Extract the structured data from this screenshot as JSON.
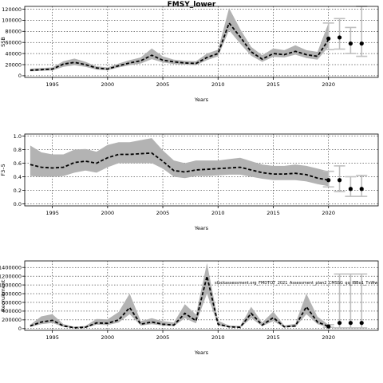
{
  "chart_data": [
    {
      "type": "line",
      "title": "FMSY_lower",
      "xlabel": "Years",
      "ylabel": "SSB",
      "xlim": [
        1992.5,
        2024.5
      ],
      "ylim": [
        -3000,
        125000
      ],
      "xticks": [
        1995,
        2000,
        2005,
        2010,
        2015,
        2020
      ],
      "yticks": [
        0,
        20000,
        40000,
        60000,
        80000,
        100000,
        120000
      ],
      "ytick_labels": [
        "0",
        "20000",
        "40000",
        "60000",
        "80000",
        "100000",
        "120000"
      ],
      "grid": true,
      "historic": {
        "x": [
          1993,
          1994,
          1995,
          1996,
          1997,
          1998,
          1999,
          2000,
          2001,
          2002,
          2003,
          2004,
          2005,
          2006,
          2007,
          2008,
          2009,
          2010,
          2011,
          2012,
          2013,
          2014,
          2015,
          2016,
          2017,
          2018,
          2019,
          2020
        ],
        "median": [
          10000,
          11000,
          12000,
          21000,
          24000,
          20000,
          14000,
          12000,
          18000,
          23000,
          27000,
          37000,
          28000,
          25000,
          23000,
          22000,
          33000,
          40000,
          95000,
          70000,
          43000,
          30000,
          40000,
          38000,
          44000,
          38000,
          35000,
          65000
        ],
        "lower": [
          8000,
          9000,
          9500,
          16000,
          19000,
          16000,
          11000,
          10000,
          15000,
          19000,
          22000,
          30000,
          24000,
          21000,
          20000,
          19000,
          28000,
          35000,
          82000,
          58000,
          36000,
          25000,
          34000,
          33000,
          38000,
          32000,
          29000,
          52000
        ],
        "upper": [
          13000,
          14000,
          15000,
          26000,
          31000,
          25000,
          17000,
          15000,
          22000,
          28000,
          33000,
          49000,
          35000,
          29000,
          27000,
          26000,
          40000,
          47000,
          122000,
          84000,
          52000,
          37000,
          49000,
          46000,
          55000,
          46000,
          43000,
          95000
        ]
      },
      "forecast": {
        "x": [
          2020,
          2021,
          2022,
          2023
        ],
        "median": [
          67000,
          69000,
          58000,
          58000
        ],
        "lower": [
          47000,
          48000,
          40000,
          35000
        ],
        "upper": [
          95000,
          103000,
          87000,
          126000
        ]
      }
    },
    {
      "type": "line",
      "title": "",
      "xlabel": "Years",
      "ylabel": "F3–5",
      "xlim": [
        1992.5,
        2024.5
      ],
      "ylim": [
        -0.03,
        1.03
      ],
      "xticks": [
        1995,
        2000,
        2005,
        2010,
        2015,
        2020
      ],
      "yticks": [
        0.0,
        0.2,
        0.4,
        0.6,
        0.8,
        1.0
      ],
      "ytick_labels": [
        "0.0",
        "0.2",
        "0.4",
        "0.6",
        "0.8",
        "1.0"
      ],
      "grid": true,
      "historic": {
        "x": [
          1993,
          1994,
          1995,
          1996,
          1997,
          1998,
          1999,
          2000,
          2001,
          2002,
          2003,
          2004,
          2005,
          2006,
          2007,
          2008,
          2009,
          2010,
          2011,
          2012,
          2013,
          2014,
          2015,
          2016,
          2017,
          2018,
          2019,
          2020
        ],
        "median": [
          0.58,
          0.54,
          0.53,
          0.54,
          0.61,
          0.63,
          0.6,
          0.68,
          0.73,
          0.73,
          0.74,
          0.75,
          0.63,
          0.49,
          0.47,
          0.5,
          0.51,
          0.52,
          0.53,
          0.54,
          0.5,
          0.46,
          0.44,
          0.44,
          0.45,
          0.43,
          0.38,
          0.35
        ],
        "lower": [
          0.41,
          0.4,
          0.4,
          0.41,
          0.46,
          0.49,
          0.46,
          0.54,
          0.6,
          0.6,
          0.6,
          0.6,
          0.52,
          0.4,
          0.38,
          0.41,
          0.41,
          0.42,
          0.43,
          0.43,
          0.4,
          0.37,
          0.35,
          0.35,
          0.35,
          0.33,
          0.29,
          0.26
        ],
        "upper": [
          0.86,
          0.76,
          0.73,
          0.73,
          0.8,
          0.81,
          0.77,
          0.87,
          0.91,
          0.91,
          0.94,
          0.97,
          0.79,
          0.64,
          0.6,
          0.64,
          0.64,
          0.64,
          0.66,
          0.68,
          0.63,
          0.58,
          0.56,
          0.56,
          0.58,
          0.56,
          0.52,
          0.48
        ]
      },
      "forecast": {
        "x": [
          2020,
          2021,
          2022,
          2023
        ],
        "median": [
          0.35,
          0.35,
          0.22,
          0.22
        ],
        "lower": [
          0.25,
          0.18,
          0.11,
          0.11
        ],
        "upper": [
          0.48,
          0.56,
          0.4,
          0.42
        ]
      }
    },
    {
      "type": "line",
      "title": "",
      "xlabel": "Years",
      "ylabel": "Recruitment",
      "xlim": [
        1992.5,
        2024.5
      ],
      "ylim": [
        -40000,
        1550000
      ],
      "xticks": [
        1995,
        2000,
        2005,
        2010,
        2015,
        2020
      ],
      "yticks": [
        0,
        200000,
        400000,
        600000,
        800000,
        1000000,
        1200000,
        1400000
      ],
      "ytick_labels": [
        "0",
        "200000",
        "400000",
        "600000",
        "800000",
        "1000000",
        "1200000",
        "1400000"
      ],
      "grid": true,
      "annotation": "stockassessment.org_FMDTOT_2021_Assessment_plan2_CMSSG_qq_IBBo1_TvWw",
      "historic": {
        "x": [
          1993,
          1994,
          1995,
          1996,
          1997,
          1998,
          1999,
          2000,
          2001,
          2002,
          2003,
          2004,
          2005,
          2006,
          2007,
          2008,
          2009,
          2010,
          2011,
          2012,
          2013,
          2014,
          2015,
          2016,
          2017,
          2018,
          2019,
          2020
        ],
        "median": [
          60000,
          150000,
          190000,
          60000,
          20000,
          30000,
          130000,
          120000,
          200000,
          480000,
          100000,
          150000,
          100000,
          80000,
          350000,
          180000,
          1200000,
          100000,
          40000,
          30000,
          350000,
          80000,
          250000,
          40000,
          60000,
          500000,
          150000,
          50000
        ],
        "lower": [
          40000,
          100000,
          130000,
          40000,
          10000,
          20000,
          90000,
          80000,
          140000,
          330000,
          70000,
          100000,
          70000,
          55000,
          240000,
          120000,
          800000,
          70000,
          25000,
          20000,
          240000,
          55000,
          170000,
          25000,
          40000,
          330000,
          100000,
          30000
        ],
        "upper": [
          90000,
          280000,
          330000,
          100000,
          40000,
          60000,
          220000,
          210000,
          380000,
          800000,
          170000,
          240000,
          170000,
          140000,
          560000,
          320000,
          1500000,
          180000,
          70000,
          60000,
          500000,
          140000,
          390000,
          70000,
          110000,
          800000,
          270000,
          90000
        ]
      },
      "forecast": {
        "x": [
          2020,
          2021,
          2022,
          2023
        ],
        "median": [
          50000,
          130000,
          130000,
          130000
        ],
        "lower": [
          30000,
          15000,
          15000,
          15000
        ],
        "upper": [
          90000,
          1250000,
          1250000,
          1250000
        ]
      }
    }
  ]
}
